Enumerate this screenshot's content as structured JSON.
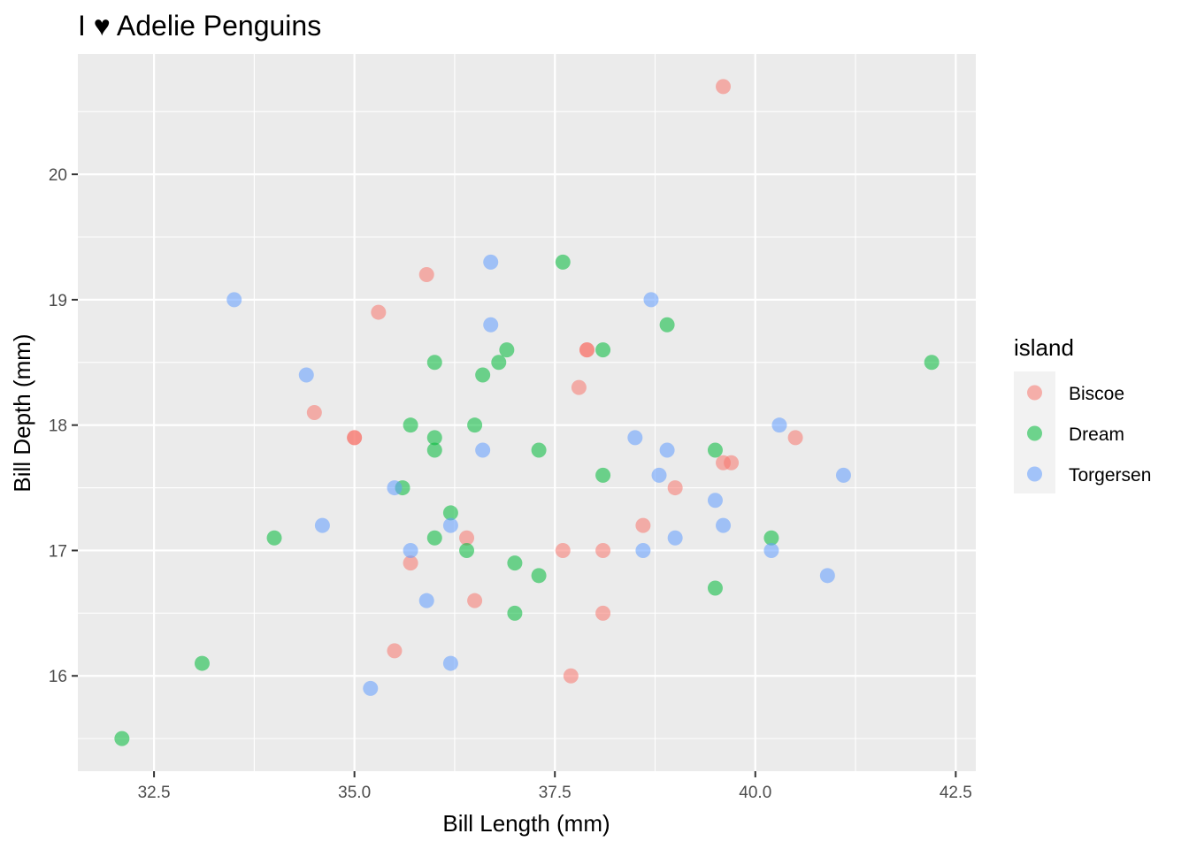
{
  "chart_data": {
    "type": "scatter",
    "title": "I ♥ Adelie Penguins",
    "xlabel": "Bill Length (mm)",
    "ylabel": "Bill Depth (mm)",
    "xlim": [
      31.55,
      42.75
    ],
    "ylim": [
      15.24,
      20.96
    ],
    "x_ticks": [
      32.5,
      35.0,
      37.5,
      40.0,
      42.5
    ],
    "x_tick_labels": [
      "32.5",
      "35.0",
      "37.5",
      "40.0",
      "42.5"
    ],
    "y_ticks": [
      16,
      17,
      18,
      19,
      20
    ],
    "y_tick_labels": [
      "16",
      "17",
      "18",
      "19",
      "20"
    ],
    "grid": true,
    "legend": {
      "title": "island",
      "position": "right"
    },
    "series": [
      {
        "name": "Biscoe",
        "color": "#F8766D",
        "points": [
          [
            39.6,
            20.7
          ],
          [
            35.9,
            19.2
          ],
          [
            35.3,
            18.9
          ],
          [
            37.9,
            18.6
          ],
          [
            37.9,
            18.6
          ],
          [
            37.8,
            18.3
          ],
          [
            34.5,
            18.1
          ],
          [
            35.0,
            17.9
          ],
          [
            35.0,
            17.9
          ],
          [
            40.5,
            17.9
          ],
          [
            39.6,
            17.7
          ],
          [
            39.7,
            17.7
          ],
          [
            39.0,
            17.5
          ],
          [
            38.6,
            17.2
          ],
          [
            36.4,
            17.1
          ],
          [
            37.6,
            17.0
          ],
          [
            38.1,
            17.0
          ],
          [
            35.7,
            16.9
          ],
          [
            36.5,
            16.6
          ],
          [
            38.1,
            16.5
          ],
          [
            35.5,
            16.2
          ],
          [
            37.7,
            16.0
          ]
        ]
      },
      {
        "name": "Dream",
        "color": "#00BA38",
        "points": [
          [
            37.6,
            19.3
          ],
          [
            38.9,
            18.8
          ],
          [
            36.9,
            18.6
          ],
          [
            38.1,
            18.6
          ],
          [
            36.0,
            18.5
          ],
          [
            36.8,
            18.5
          ],
          [
            42.2,
            18.5
          ],
          [
            36.6,
            18.4
          ],
          [
            35.7,
            18.0
          ],
          [
            36.5,
            18.0
          ],
          [
            36.0,
            17.9
          ],
          [
            36.0,
            17.8
          ],
          [
            37.3,
            17.8
          ],
          [
            39.5,
            17.8
          ],
          [
            38.1,
            17.6
          ],
          [
            35.6,
            17.5
          ],
          [
            36.2,
            17.3
          ],
          [
            34.0,
            17.1
          ],
          [
            36.0,
            17.1
          ],
          [
            40.2,
            17.1
          ],
          [
            36.4,
            17.0
          ],
          [
            37.0,
            16.9
          ],
          [
            37.3,
            16.8
          ],
          [
            39.5,
            16.7
          ],
          [
            37.0,
            16.5
          ],
          [
            33.1,
            16.1
          ],
          [
            32.1,
            15.5
          ]
        ]
      },
      {
        "name": "Torgersen",
        "color": "#619CFF",
        "points": [
          [
            36.7,
            19.3
          ],
          [
            33.5,
            19.0
          ],
          [
            38.7,
            19.0
          ],
          [
            36.7,
            18.8
          ],
          [
            34.4,
            18.4
          ],
          [
            40.3,
            18.0
          ],
          [
            38.5,
            17.9
          ],
          [
            36.6,
            17.8
          ],
          [
            38.9,
            17.8
          ],
          [
            38.8,
            17.6
          ],
          [
            41.1,
            17.6
          ],
          [
            35.5,
            17.5
          ],
          [
            39.5,
            17.4
          ],
          [
            34.6,
            17.2
          ],
          [
            36.2,
            17.2
          ],
          [
            39.6,
            17.2
          ],
          [
            39.0,
            17.1
          ],
          [
            35.7,
            17.0
          ],
          [
            38.6,
            17.0
          ],
          [
            40.2,
            17.0
          ],
          [
            40.9,
            16.8
          ],
          [
            35.9,
            16.6
          ],
          [
            36.2,
            16.1
          ],
          [
            35.2,
            15.9
          ]
        ]
      }
    ]
  }
}
